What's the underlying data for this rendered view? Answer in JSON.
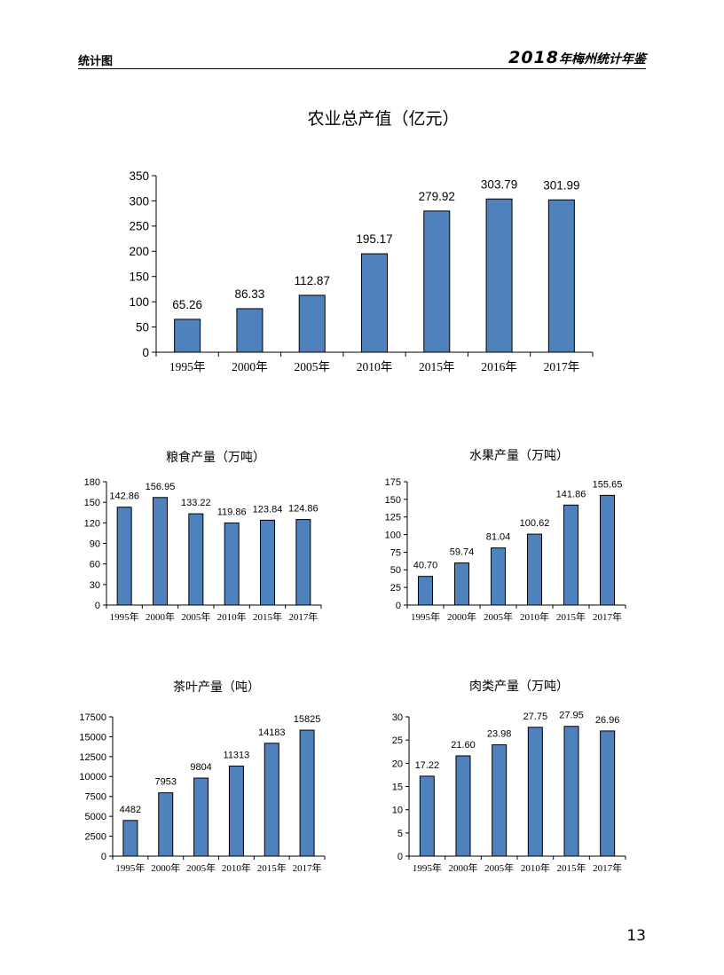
{
  "header": {
    "section": "统计图",
    "book_year": "2018",
    "book_title": "年梅州统计年鉴"
  },
  "page_number": "13",
  "colors": {
    "bar": "#4f81bd",
    "bar_border": "#000000"
  },
  "chart_data": [
    {
      "id": "agri",
      "type": "bar",
      "title": "农业总产值（亿元）",
      "categories": [
        "1995年",
        "2000年",
        "2005年",
        "2010年",
        "2015年",
        "2016年",
        "2017年"
      ],
      "values": [
        65.26,
        86.33,
        112.87,
        195.17,
        279.92,
        303.79,
        301.99
      ],
      "labels": [
        "65.26",
        "86.33",
        "112.87",
        "195.17",
        "279.92",
        "303.79",
        "301.99"
      ],
      "ylim": [
        0,
        350
      ],
      "yticks": [
        "0",
        "50",
        "100",
        "150",
        "200",
        "250",
        "300",
        "350"
      ],
      "grid": false
    },
    {
      "id": "grain",
      "type": "bar",
      "title": "粮食产量（万吨）",
      "categories": [
        "1995年",
        "2000年",
        "2005年",
        "2010年",
        "2015年",
        "2017年"
      ],
      "values": [
        142.86,
        156.95,
        133.22,
        119.86,
        123.84,
        124.86
      ],
      "labels": [
        "142.86",
        "156.95",
        "133.22",
        "119.86",
        "123.84",
        "124.86"
      ],
      "ylim": [
        0,
        180
      ],
      "yticks": [
        "0",
        "30",
        "60",
        "90",
        "120",
        "150",
        "180"
      ],
      "grid": false
    },
    {
      "id": "fruit",
      "type": "bar",
      "title": "水果产量（万吨）",
      "categories": [
        "1995年",
        "2000年",
        "2005年",
        "2010年",
        "2015年",
        "2017年"
      ],
      "values": [
        40.7,
        59.74,
        81.04,
        100.62,
        141.86,
        155.65
      ],
      "labels": [
        "40.70",
        "59.74",
        "81.04",
        "100.62",
        "141.86",
        "155.65"
      ],
      "ylim": [
        0,
        175
      ],
      "yticks": [
        "0",
        "25",
        "50",
        "75",
        "100",
        "125",
        "150",
        "175"
      ],
      "grid": false
    },
    {
      "id": "tea",
      "type": "bar",
      "title": "茶叶产量（吨）",
      "categories": [
        "1995年",
        "2000年",
        "2005年",
        "2010年",
        "2015年",
        "2017年"
      ],
      "values": [
        4482,
        7953,
        9804,
        11313,
        14183,
        15825
      ],
      "labels": [
        "4482",
        "7953",
        "9804",
        "11313",
        "14183",
        "15825"
      ],
      "ylim": [
        0,
        17500
      ],
      "yticks": [
        "0",
        "2500",
        "5000",
        "7500",
        "10000",
        "12500",
        "15000",
        "17500"
      ],
      "grid": false
    },
    {
      "id": "meat",
      "type": "bar",
      "title": "肉类产量（万吨）",
      "categories": [
        "1995年",
        "2000年",
        "2005年",
        "2010年",
        "2015年",
        "2017年"
      ],
      "values": [
        17.22,
        21.6,
        23.98,
        27.75,
        27.95,
        26.96
      ],
      "labels": [
        "17.22",
        "21.60",
        "23.98",
        "27.75",
        "27.95",
        "26.96"
      ],
      "ylim": [
        0,
        30
      ],
      "yticks": [
        "0",
        "5",
        "10",
        "15",
        "20",
        "25",
        "30"
      ],
      "grid": false
    }
  ]
}
